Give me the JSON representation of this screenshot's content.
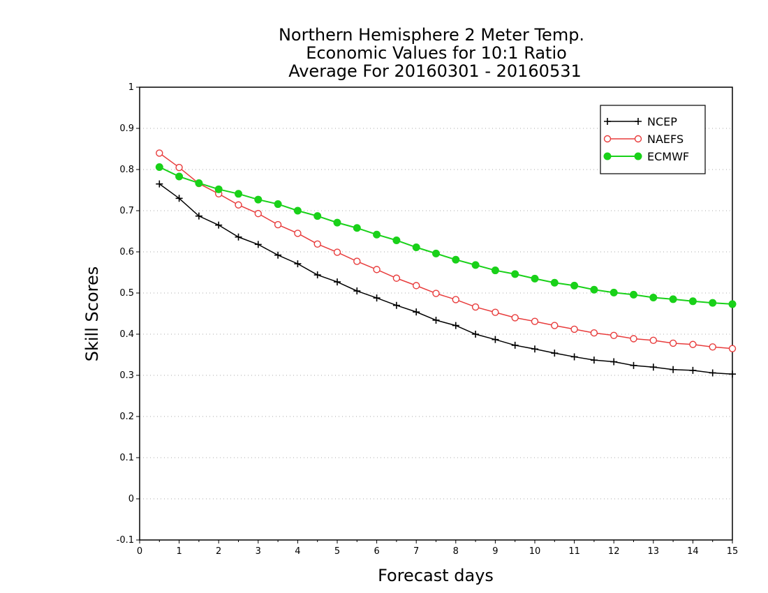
{
  "chart_data": {
    "type": "line",
    "title_lines": [
      "Northern Hemisphere 2 Meter Temp.",
      "Economic Values for 10:1 Ratio",
      "Average For 20160301 - 20160531"
    ],
    "xlabel": "Forecast days",
    "ylabel": "Skill Scores",
    "xlim": [
      0,
      15
    ],
    "ylim": [
      -0.1,
      1
    ],
    "xticks": [
      0,
      1,
      2,
      3,
      4,
      5,
      6,
      7,
      8,
      9,
      10,
      11,
      12,
      13,
      14,
      15
    ],
    "xtick_labels": [
      "0",
      "1",
      "2",
      "3",
      "4",
      "5",
      "6",
      "7",
      "8",
      "9",
      "10",
      "11",
      "12",
      "13",
      "14",
      "15"
    ],
    "yticks": [
      -0.1,
      0,
      0.1,
      0.2,
      0.3,
      0.4,
      0.5,
      0.6,
      0.7,
      0.8,
      0.9,
      1
    ],
    "ytick_labels": [
      "-0.1",
      "0",
      "0.1",
      "0.2",
      "0.3",
      "0.4",
      "0.5",
      "0.6",
      "0.7",
      "0.8",
      "0.9",
      "1"
    ],
    "grid": "horizontal dotted",
    "legend_position": "top-right",
    "x": [
      0.5,
      1,
      1.5,
      2,
      2.5,
      3,
      3.5,
      4,
      4.5,
      5,
      5.5,
      6,
      6.5,
      7,
      7.5,
      8,
      8.5,
      9,
      9.5,
      10,
      10.5,
      11,
      11.5,
      12,
      12.5,
      13,
      13.5,
      14,
      14.5,
      15
    ],
    "series": [
      {
        "name": "NCEP",
        "color": "#000000",
        "marker": "plus",
        "values": [
          0.765,
          0.73,
          0.687,
          0.665,
          0.636,
          0.618,
          0.592,
          0.571,
          0.544,
          0.527,
          0.505,
          0.488,
          0.47,
          0.454,
          0.434,
          0.421,
          0.4,
          0.387,
          0.373,
          0.364,
          0.354,
          0.345,
          0.337,
          0.333,
          0.324,
          0.32,
          0.314,
          0.312,
          0.306,
          0.303
        ]
      },
      {
        "name": "NAEFS",
        "color": "#e83c3c",
        "marker": "open-circle",
        "values": [
          0.84,
          0.805,
          0.766,
          0.741,
          0.714,
          0.693,
          0.666,
          0.645,
          0.619,
          0.599,
          0.577,
          0.557,
          0.536,
          0.518,
          0.499,
          0.484,
          0.466,
          0.453,
          0.44,
          0.431,
          0.421,
          0.412,
          0.403,
          0.397,
          0.389,
          0.385,
          0.378,
          0.375,
          0.369,
          0.365
        ]
      },
      {
        "name": "ECMWF",
        "color": "#19d119",
        "marker": "filled-circle",
        "values": [
          0.806,
          0.783,
          0.767,
          0.752,
          0.741,
          0.727,
          0.716,
          0.7,
          0.687,
          0.671,
          0.658,
          0.642,
          0.628,
          0.611,
          0.596,
          0.581,
          0.568,
          0.555,
          0.546,
          0.535,
          0.525,
          0.518,
          0.508,
          0.501,
          0.496,
          0.489,
          0.485,
          0.48,
          0.476,
          0.473
        ]
      }
    ]
  }
}
